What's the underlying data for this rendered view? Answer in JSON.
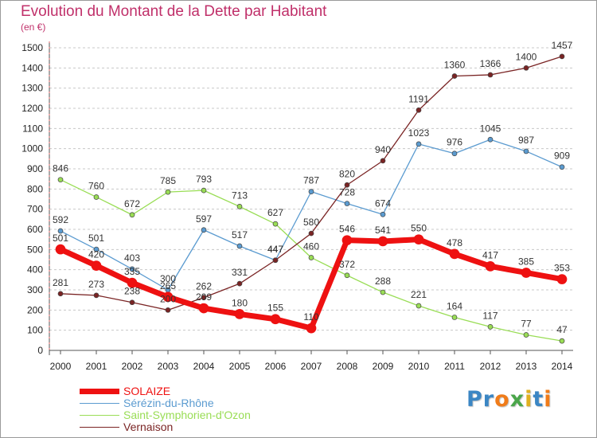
{
  "header": {
    "title": "Evolution du Montant de la Dette par Habitant",
    "unit": "(en €)"
  },
  "logo": {
    "text": "Proxiti",
    "colors": [
      "#3b86c4",
      "#3b86c4",
      "#f07c1a",
      "#4aa64a",
      "#e0b020",
      "#3b86c4",
      "#f07c1a"
    ]
  },
  "chart_data": {
    "type": "line",
    "title": "Evolution du Montant de la Dette par Habitant",
    "ylabel": "(en €)",
    "xlabel": "",
    "x": [
      "2000",
      "2001",
      "2002",
      "2003",
      "2004",
      "2005",
      "2006",
      "2007",
      "2008",
      "2009",
      "2010",
      "2011",
      "2012",
      "2013",
      "2014"
    ],
    "ylim": [
      0,
      1500
    ],
    "yticks": [
      0,
      100,
      200,
      300,
      400,
      500,
      600,
      700,
      800,
      900,
      1000,
      1100,
      1200,
      1300,
      1400,
      1500
    ],
    "grid": "horizontal dashed",
    "legend_position": "bottom-left",
    "series": [
      {
        "name": "SOLAIZE",
        "color": "#ee1111",
        "width": 7,
        "values": [
          501,
          420,
          335,
          265,
          209,
          180,
          155,
          110,
          546,
          541,
          550,
          478,
          417,
          385,
          353
        ],
        "labels": [
          "501",
          "420",
          "335",
          "265",
          "209",
          "180",
          "155",
          "110",
          "546",
          "541",
          "550",
          "478",
          "417",
          "385",
          "353"
        ]
      },
      {
        "name": "Sérézin-du-Rhône",
        "color": "#5b9bd0",
        "width": 1.3,
        "values": [
          592,
          501,
          403,
          300,
          597,
          517,
          447,
          787,
          728,
          674,
          1023,
          976,
          1045,
          987,
          909
        ],
        "labels": [
          "592",
          "501",
          "403",
          "300",
          "597",
          "517",
          "447",
          "787",
          "728",
          "674",
          "1023",
          "976",
          "1045",
          "987",
          "909"
        ]
      },
      {
        "name": "Saint-Symphorien-d'Ozon",
        "color": "#99dd55",
        "width": 1.3,
        "values": [
          846,
          760,
          672,
          785,
          793,
          713,
          627,
          460,
          372,
          288,
          221,
          164,
          117,
          77,
          47
        ],
        "labels": [
          "846",
          "760",
          "672",
          "785",
          "793",
          "713",
          "627",
          "460",
          "372",
          "288",
          "221",
          "164",
          "117",
          "77",
          "47"
        ]
      },
      {
        "name": "Vernaison",
        "color": "#7a2424",
        "width": 1.3,
        "values": [
          281,
          273,
          238,
          200,
          262,
          331,
          447,
          580,
          820,
          940,
          1191,
          1360,
          1366,
          1400,
          1457
        ],
        "labels": [
          "281",
          "273",
          "238",
          "200",
          "262",
          "331",
          "447",
          "580",
          "820",
          "940",
          "1191",
          "1360",
          "1366",
          "1400",
          "1457"
        ]
      }
    ]
  }
}
